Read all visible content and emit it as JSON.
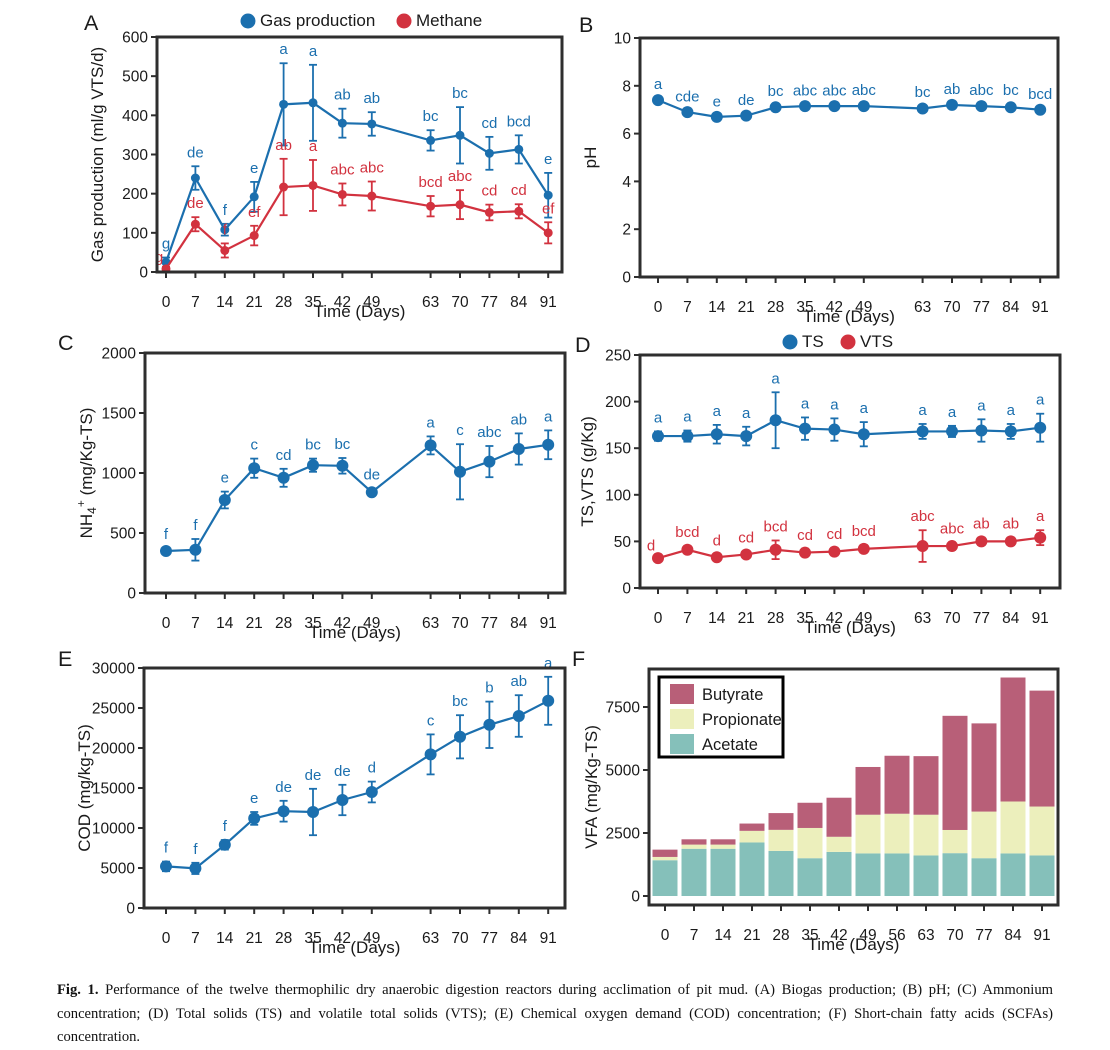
{
  "figure": {
    "caption_label": "Fig. 1.",
    "caption_text": " Performance of the twelve thermophilic dry anaerobic digestion reactors during acclimation of pit mud. (A) Biogas production; (B) pH; (C) Ammonium concentration; (D) Total solids (TS) and volatile total solids (VTS); (E) Chemical oxygen demand (COD) concentration; (F) Short-chain fatty acids (SCFAs) concentration."
  },
  "colors": {
    "blue": "#1b6fae",
    "red": "#d2323f",
    "butyrate": "#b85f78",
    "propionate": "#ecefbc",
    "acetate": "#85c0ba",
    "axis": "#2e2e2e",
    "text": "#1a1a1a"
  },
  "chart_data": [
    {
      "panel": "A",
      "type": "line",
      "xlabel": "Time (Days)",
      "ylabel": "Gas production (ml/g VTS/d)",
      "x": [
        0,
        7,
        14,
        21,
        28,
        35,
        42,
        49,
        63,
        70,
        77,
        84,
        91
      ],
      "yticks": [
        0,
        100,
        200,
        300,
        400,
        500,
        600
      ],
      "ylim": [
        0,
        600
      ],
      "legend": [
        "Gas production",
        "Methane"
      ],
      "series": [
        {
          "name": "Gas production",
          "color": "blue",
          "values": [
            25,
            240,
            108,
            192,
            428,
            432,
            380,
            378,
            336,
            349,
            303,
            313,
            196
          ],
          "errors": [
            12,
            30,
            15,
            38,
            105,
            97,
            37,
            30,
            26,
            72,
            42,
            36,
            57
          ],
          "letters": [
            "g",
            "de",
            "f",
            "e",
            "a",
            "a",
            "ab",
            "ab",
            "bc",
            "bc",
            "cd",
            "bcd",
            "e"
          ]
        },
        {
          "name": "Methane",
          "color": "red",
          "values": [
            8,
            122,
            55,
            93,
            217,
            221,
            198,
            194,
            168,
            172,
            152,
            155,
            100
          ],
          "errors": [
            5,
            18,
            18,
            25,
            72,
            65,
            28,
            37,
            26,
            37,
            20,
            18,
            27
          ],
          "letters": [
            "g",
            "de",
            "f",
            "ef",
            "ab",
            "a",
            "abc",
            "abc",
            "bcd",
            "abc",
            "cd",
            "cd",
            "ef"
          ]
        }
      ]
    },
    {
      "panel": "B",
      "type": "line",
      "xlabel": "Time (Days)",
      "ylabel": "pH",
      "x": [
        0,
        7,
        14,
        21,
        28,
        35,
        42,
        49,
        63,
        70,
        77,
        84,
        91
      ],
      "yticks": [
        0,
        2,
        4,
        6,
        8,
        10
      ],
      "ylim": [
        0,
        10
      ],
      "series": [
        {
          "name": "pH",
          "color": "blue",
          "values": [
            7.4,
            6.9,
            6.7,
            6.75,
            7.1,
            7.15,
            7.15,
            7.15,
            7.05,
            7.2,
            7.15,
            7.1,
            7.0
          ],
          "errors": [
            0.08,
            0.06,
            0.06,
            0.06,
            0.1,
            0.07,
            0.07,
            0.09,
            0.1,
            0.07,
            0.08,
            0.14,
            0.07
          ],
          "letters": [
            "a",
            "cde",
            "e",
            "de",
            "bc",
            "abc",
            "abc",
            "abc",
            "bc",
            "ab",
            "abc",
            "bc",
            "bcd"
          ]
        }
      ]
    },
    {
      "panel": "C",
      "type": "line",
      "xlabel": "Time (Days)",
      "ylabel_parts": {
        "prefix": "NH",
        "sub": "4",
        "sup": "+",
        "suffix": " (mg/Kg-TS)"
      },
      "x": [
        0,
        7,
        14,
        21,
        28,
        35,
        42,
        49,
        63,
        70,
        77,
        84,
        91
      ],
      "yticks": [
        0,
        500,
        1000,
        1500,
        2000
      ],
      "ylim": [
        0,
        2000
      ],
      "series": [
        {
          "name": "NH4+",
          "color": "blue",
          "values": [
            350,
            360,
            775,
            1040,
            960,
            1065,
            1060,
            840,
            1230,
            1010,
            1095,
            1200,
            1235
          ],
          "errors": [
            25,
            90,
            70,
            80,
            75,
            55,
            65,
            30,
            75,
            230,
            130,
            130,
            120
          ],
          "letters": [
            "f",
            "f",
            "e",
            "c",
            "cd",
            "bc",
            "bc",
            "de",
            "a",
            "c",
            "abc",
            "ab",
            "a"
          ]
        }
      ]
    },
    {
      "panel": "D",
      "type": "line",
      "xlabel": "Time (Days)",
      "ylabel": "TS,VTS (g/Kg)",
      "x": [
        0,
        7,
        14,
        21,
        28,
        35,
        42,
        49,
        63,
        70,
        77,
        84,
        91
      ],
      "yticks": [
        0,
        50,
        100,
        150,
        200,
        250
      ],
      "ylim": [
        0,
        250
      ],
      "legend": [
        "TS",
        "VTS"
      ],
      "series": [
        {
          "name": "TS",
          "color": "blue",
          "values": [
            163,
            163,
            165,
            163,
            180,
            171,
            170,
            165,
            168,
            168,
            169,
            168,
            172
          ],
          "errors": [
            5,
            6,
            10,
            10,
            30,
            12,
            12,
            13,
            8,
            6,
            12,
            8,
            15
          ],
          "letters": [
            "a",
            "a",
            "a",
            "a",
            "a",
            "a",
            "a",
            "a",
            "a",
            "a",
            "a",
            "a",
            "a"
          ]
        },
        {
          "name": "VTS",
          "color": "red",
          "values": [
            32,
            41,
            33,
            36,
            41,
            38,
            39,
            42,
            45,
            45,
            50,
            50,
            54
          ],
          "errors": [
            3,
            4,
            3,
            3,
            10,
            4,
            4,
            4,
            17,
            4,
            4,
            4,
            8
          ],
          "letters": [
            "d",
            "bcd",
            "d",
            "cd",
            "bcd",
            "cd",
            "cd",
            "bcd",
            "abc",
            "abc",
            "ab",
            "ab",
            "a"
          ]
        }
      ]
    },
    {
      "panel": "E",
      "type": "line",
      "xlabel": "Time (Days)",
      "ylabel": "COD (mg/kg-TS)",
      "x": [
        0,
        7,
        14,
        21,
        28,
        35,
        42,
        49,
        63,
        70,
        77,
        84,
        91
      ],
      "yticks": [
        0,
        5000,
        10000,
        15000,
        20000,
        25000,
        30000
      ],
      "ylim": [
        0,
        30000
      ],
      "series": [
        {
          "name": "COD",
          "color": "blue",
          "values": [
            5200,
            4950,
            7900,
            11200,
            12100,
            12000,
            13500,
            14500,
            19200,
            21400,
            22900,
            24000,
            25900
          ],
          "errors": [
            600,
            700,
            600,
            800,
            1300,
            2900,
            1900,
            1300,
            2500,
            2700,
            2900,
            2600,
            3000
          ],
          "letters": [
            "f",
            "f",
            "f",
            "e",
            "de",
            "de",
            "de",
            "d",
            "c",
            "bc",
            "b",
            "ab",
            "a"
          ]
        }
      ]
    },
    {
      "panel": "F",
      "type": "stacked-bar",
      "xlabel": "Time (Days)",
      "ylabel": "VFA (mg/Kg-TS)",
      "categories": [
        0,
        7,
        14,
        21,
        28,
        35,
        42,
        49,
        56,
        63,
        70,
        77,
        84,
        91
      ],
      "yticks": [
        0,
        2500,
        5000,
        7500
      ],
      "ylim": [
        0,
        9000
      ],
      "legend_order": [
        "Butyrate",
        "Propionate",
        "Acetate"
      ],
      "series": [
        {
          "name": "Acetate",
          "color": "acetate",
          "values": [
            1420,
            1875,
            1875,
            2125,
            1790,
            1500,
            1750,
            1690,
            1690,
            1610,
            1700,
            1500,
            1690,
            1610
          ]
        },
        {
          "name": "Propionate",
          "color": "propionate",
          "values": [
            130,
            165,
            165,
            460,
            835,
            1200,
            600,
            1535,
            1575,
            1615,
            920,
            1850,
            2060,
            1940
          ]
        },
        {
          "name": "Butyrate",
          "color": "butyrate",
          "values": [
            290,
            210,
            210,
            290,
            665,
            1000,
            1550,
            1895,
            2300,
            2325,
            4530,
            3500,
            4920,
            4600
          ]
        }
      ]
    }
  ]
}
